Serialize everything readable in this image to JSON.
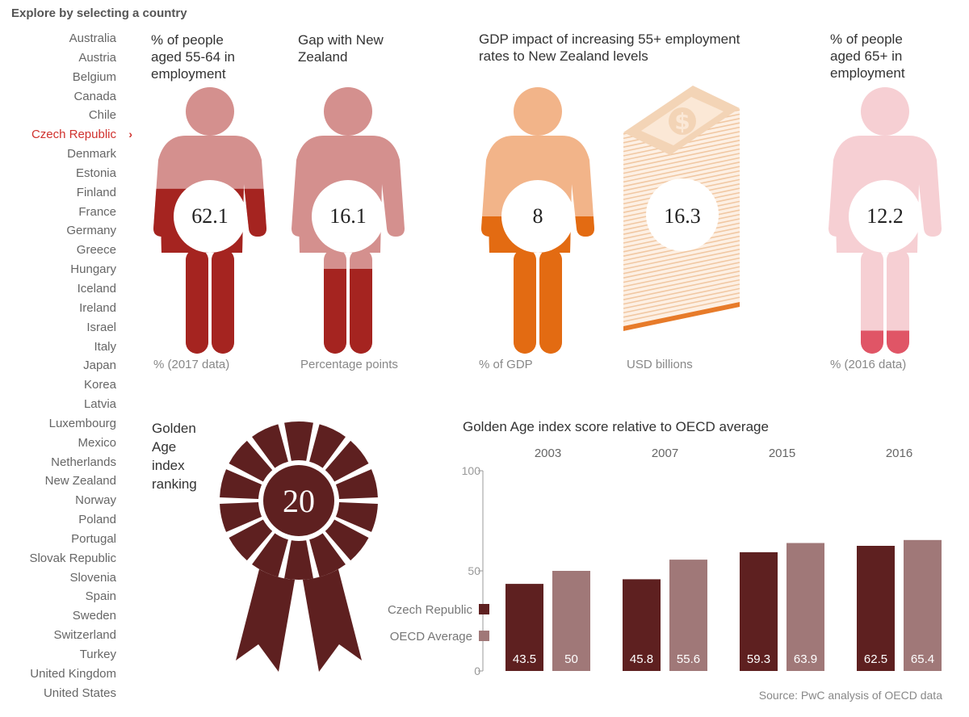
{
  "heading": "Explore by selecting a country",
  "countries": [
    "Australia",
    "Austria",
    "Belgium",
    "Canada",
    "Chile",
    "Czech Republic",
    "Denmark",
    "Estonia",
    "Finland",
    "France",
    "Germany",
    "Greece",
    "Hungary",
    "Iceland",
    "Ireland",
    "Israel",
    "Italy",
    "Japan",
    "Korea",
    "Latvia",
    "Luxembourg",
    "Mexico",
    "Netherlands",
    "New Zealand",
    "Norway",
    "Poland",
    "Portugal",
    "Slovak Republic",
    "Slovenia",
    "Spain",
    "Sweden",
    "Switzerland",
    "Turkey",
    "United Kingdom",
    "United States"
  ],
  "selected_country": "Czech Republic",
  "stats": {
    "employment_55_64": {
      "title_lines": [
        "% of people",
        "aged 55-64 in",
        "employment"
      ],
      "value": "62.1",
      "unit": "% (2017 data)",
      "fraction": 0.621
    },
    "gap_nz": {
      "title_lines": [
        "Gap with New",
        "Zealand"
      ],
      "value": "16.1",
      "unit": "Percentage points"
    },
    "gdp_pct": {
      "title_lines": [
        "GDP impact of increasing 55+ employment",
        "rates to New Zealand levels"
      ],
      "value": "8",
      "unit": "% of GDP"
    },
    "gdp_usd": {
      "value": "16.3",
      "unit": "USD billions"
    },
    "employment_65": {
      "title_lines": [
        "% of people",
        "aged 65+ in",
        "employment"
      ],
      "value": "12.2",
      "unit": "% (2016 data)",
      "fraction": 0.122
    }
  },
  "ranking": {
    "label_lines": [
      "Golden",
      "Age",
      "index",
      "ranking"
    ],
    "value": "20"
  },
  "colors": {
    "dark_red": "#a52420",
    "light_red": "#d4908e",
    "orange": "#e36b12",
    "light_orange": "#f2b489",
    "pink": "#f6cfd3",
    "pink_accent": "#e05566",
    "maroon": "#5e2020",
    "mauve": "#a07878"
  },
  "chart_data": {
    "type": "bar",
    "title": "Golden Age index score relative to OECD average",
    "categories": [
      "2003",
      "2007",
      "2015",
      "2016"
    ],
    "series": [
      {
        "name": "Czech Republic",
        "values": [
          43.5,
          45.8,
          59.3,
          62.5
        ],
        "color": "#5e2020"
      },
      {
        "name": "OECD Average",
        "values": [
          50,
          55.6,
          63.9,
          65.4
        ],
        "color": "#a07878"
      }
    ],
    "ylim": [
      0,
      100
    ],
    "yticks": [
      0,
      50,
      100
    ],
    "legend": "left",
    "grid": false
  },
  "source": "Source: PwC analysis of OECD data"
}
